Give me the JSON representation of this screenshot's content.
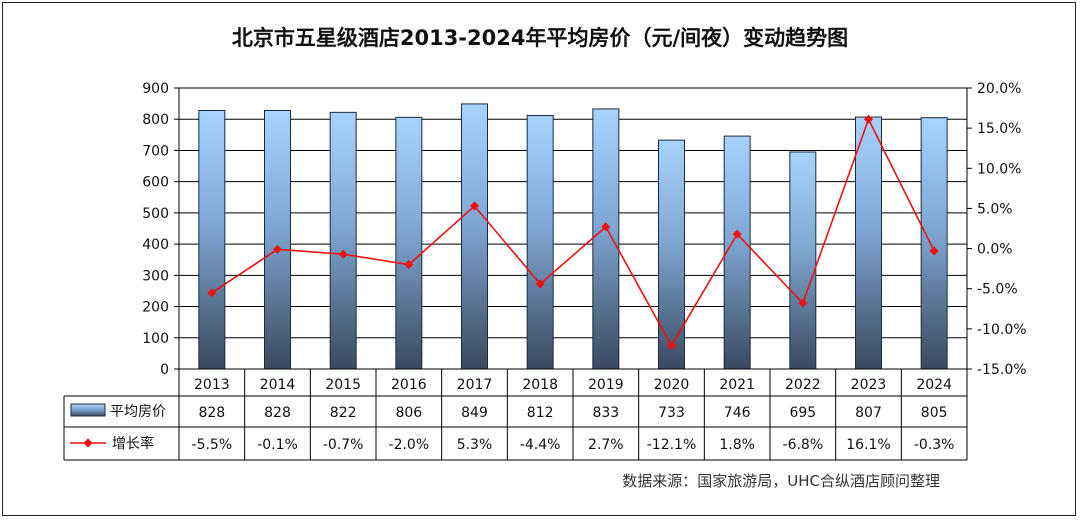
{
  "chart_data": {
    "type": "bar",
    "title": "北京市五星级酒店2013-2024年平均房价（元/间夜）变动趋势图",
    "categories": [
      "2013",
      "2014",
      "2015",
      "2016",
      "2017",
      "2018",
      "2019",
      "2020",
      "2021",
      "2022",
      "2023",
      "2024"
    ],
    "series": [
      {
        "name": "平均房价",
        "type": "bar",
        "axis": "left",
        "values": [
          828,
          828,
          822,
          806,
          849,
          812,
          833,
          733,
          746,
          695,
          807,
          805
        ],
        "labels": [
          "828",
          "828",
          "822",
          "806",
          "849",
          "812",
          "833",
          "733",
          "746",
          "695",
          "807",
          "805"
        ]
      },
      {
        "name": "增长率",
        "type": "line",
        "axis": "right",
        "values": [
          -5.5,
          -0.1,
          -0.7,
          -2.0,
          5.3,
          -4.4,
          2.7,
          -12.1,
          1.8,
          -6.8,
          16.1,
          -0.3
        ],
        "labels": [
          "-5.5%",
          "-0.1%",
          "-0.7%",
          "-2.0%",
          "5.3%",
          "-4.4%",
          "2.7%",
          "-12.1%",
          "1.8%",
          "-6.8%",
          "16.1%",
          "-0.3%"
        ]
      }
    ],
    "left_axis": {
      "min": 0,
      "max": 900,
      "ticks": [
        "0",
        "100",
        "200",
        "300",
        "400",
        "500",
        "600",
        "700",
        "800",
        "900"
      ]
    },
    "right_axis": {
      "min": -15,
      "max": 20,
      "ticks": [
        "-15.0%",
        "-10.0%",
        "-5.0%",
        "0.0%",
        "5.0%",
        "10.0%",
        "15.0%",
        "20.0%"
      ]
    },
    "grid": true,
    "legend": "data-table",
    "source": "数据来源：国家旅游局，UHC合纵酒店顾问整理"
  },
  "colors": {
    "bar_top": "#a9d3ff",
    "bar_bottom": "#3a4a60",
    "line": "#ee1111",
    "grid": "#000000"
  }
}
